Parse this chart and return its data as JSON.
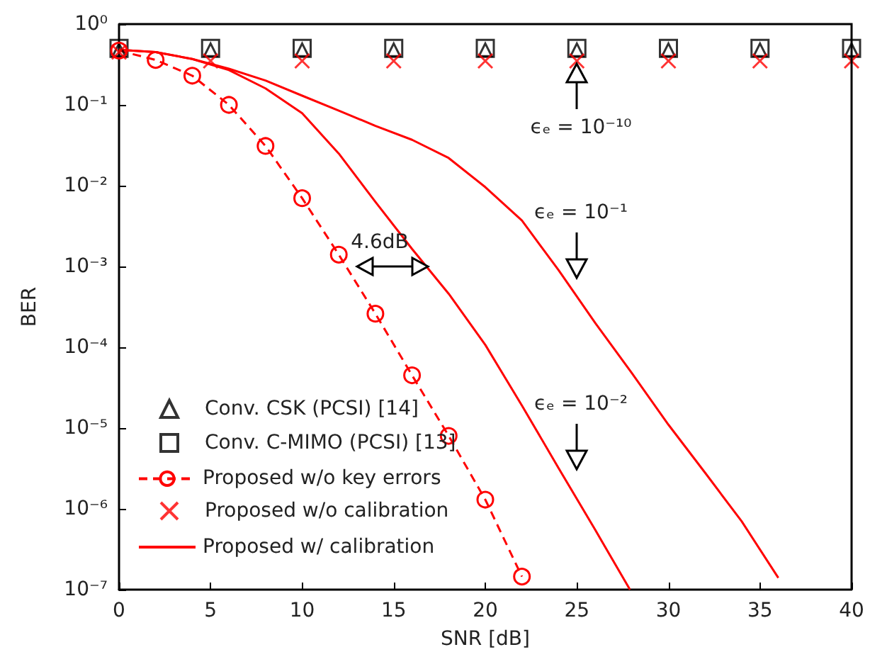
{
  "chart_data": {
    "type": "line",
    "xlabel": "SNR [dB]",
    "ylabel": "BER",
    "xlim": [
      0,
      40
    ],
    "xticks": [
      0,
      5,
      10,
      15,
      20,
      25,
      30,
      35,
      40
    ],
    "ylim": [
      1e-07,
      1
    ],
    "log": "y",
    "yticks": [
      {
        "value": 1e-07,
        "label": "10⁻⁷"
      },
      {
        "value": 1e-06,
        "label": "10⁻⁶"
      },
      {
        "value": 1e-05,
        "label": "10⁻⁵"
      },
      {
        "value": 0.0001,
        "label": "10⁻⁴"
      },
      {
        "value": 0.001,
        "label": "10⁻³"
      },
      {
        "value": 0.01,
        "label": "10⁻²"
      },
      {
        "value": 0.1,
        "label": "10⁻¹"
      },
      {
        "value": 1,
        "label": "10⁰"
      }
    ],
    "grid": false,
    "legend": "bottom left",
    "series": [
      {
        "name": "Conv. CSK (PCSI) [14]",
        "type": "scatter",
        "marker": "triangle",
        "color": "#000000",
        "x": [
          0,
          5,
          10,
          15,
          20,
          25,
          30,
          35,
          40
        ],
        "values": [
          0.48,
          0.48,
          0.48,
          0.48,
          0.48,
          0.48,
          0.48,
          0.48,
          0.48
        ]
      },
      {
        "name": "Conv. C-MIMO (PCSI) [13]",
        "type": "scatter",
        "marker": "square",
        "color": "#000000",
        "x": [
          0,
          5,
          10,
          15,
          20,
          25,
          30,
          35,
          40
        ],
        "values": [
          0.5,
          0.5,
          0.5,
          0.5,
          0.5,
          0.5,
          0.5,
          0.5,
          0.5
        ]
      },
      {
        "name": "Proposed w/o key errors",
        "marker": "circle",
        "line_style": "dashed",
        "color": "#ff0000",
        "x": [
          0,
          2,
          4,
          6,
          8,
          10,
          12,
          14,
          16,
          18,
          20,
          22
        ],
        "values": [
          0.47,
          0.36,
          0.23,
          0.1,
          0.031,
          0.007,
          0.0014,
          0.00026,
          4.5e-05,
          8e-06,
          1.3e-06,
          1.45e-07
        ]
      },
      {
        "name": "Proposed w/o calibration",
        "type": "scatter",
        "marker": "cross",
        "color": "#ff0000",
        "x": [
          0,
          5,
          10,
          15,
          20,
          25,
          30,
          35,
          40
        ],
        "values": [
          0.45,
          0.35,
          0.35,
          0.35,
          0.35,
          0.35,
          0.35,
          0.35,
          0.35
        ]
      },
      {
        "name": "Proposed w/ calibration",
        "marker": "none",
        "line_style": "solid",
        "color": "#ff0000",
        "x": [
          0,
          2,
          4,
          6,
          8,
          10,
          12,
          14,
          16,
          18,
          20,
          22,
          24,
          26,
          27.9
        ],
        "values": [
          0.48,
          0.45,
          0.37,
          0.27,
          0.16,
          0.079,
          0.025,
          0.0063,
          0.00165,
          0.00046,
          0.000107,
          1.9e-05,
          3.2e-06,
          5.5e-07,
          1e-07
        ]
      },
      {
        "marker": "none",
        "line_style": "solid",
        "color": "#ff0000",
        "x": [
          0,
          2,
          4,
          6,
          8,
          10,
          12,
          14,
          16,
          18,
          20,
          22,
          24,
          26,
          28,
          30,
          32,
          34,
          36
        ],
        "values": [
          0.48,
          0.45,
          0.37,
          0.28,
          0.2,
          0.13,
          0.085,
          0.055,
          0.037,
          0.022,
          0.0096,
          0.0037,
          0.0009,
          0.0002,
          4.8e-05,
          1.1e-05,
          2.8e-06,
          7e-07,
          1.4e-07
        ]
      }
    ],
    "annotations": [
      "4.6dB",
      "ϵₑ = 10⁻¹⁰",
      "ϵₑ = 10⁻¹",
      "ϵₑ = 10⁻²"
    ]
  }
}
